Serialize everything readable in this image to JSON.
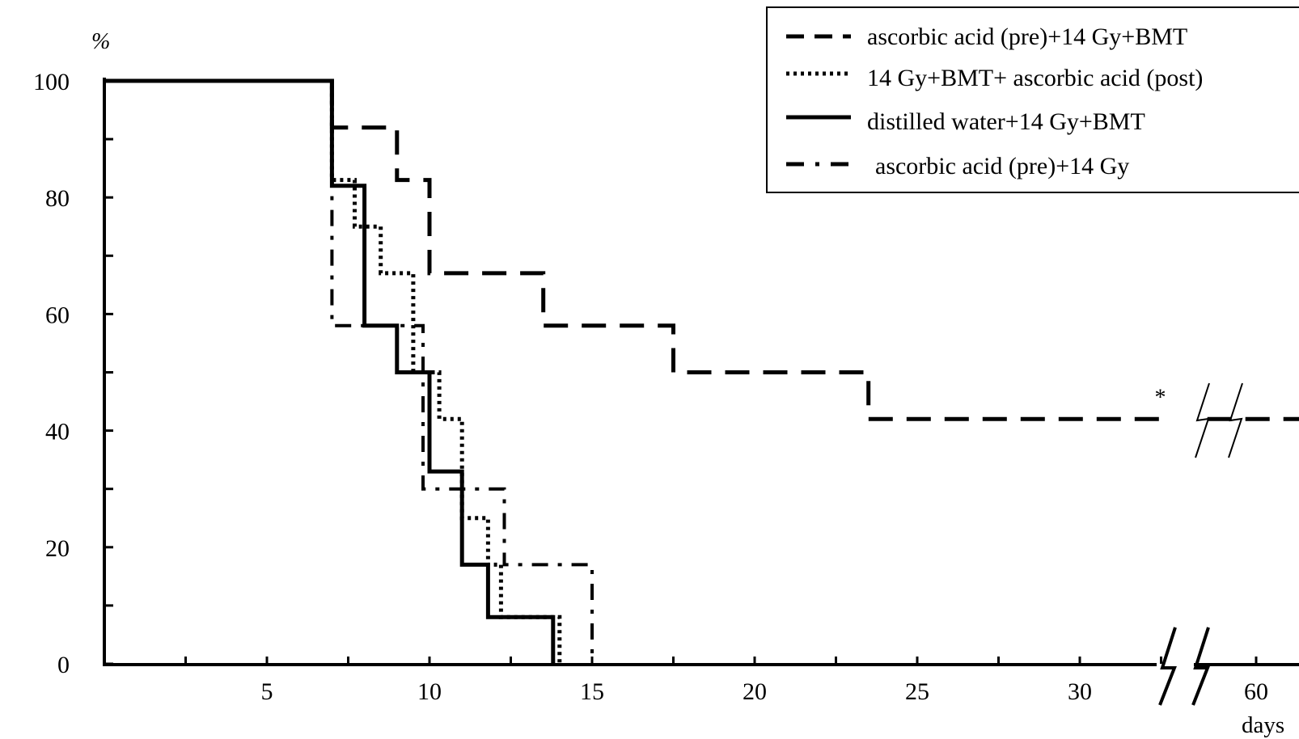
{
  "chart_data": {
    "type": "line",
    "title": "",
    "ylabel": "%",
    "xlabel": "days",
    "ylim": [
      0,
      100
    ],
    "y_ticks": [
      0,
      20,
      40,
      60,
      80,
      100
    ],
    "x_ticks": [
      {
        "value": 5,
        "label": "5"
      },
      {
        "value": 10,
        "label": "10"
      },
      {
        "value": 15,
        "label": "15"
      },
      {
        "value": 20,
        "label": "20"
      },
      {
        "value": 25,
        "label": "25"
      },
      {
        "value": 30,
        "label": "30"
      },
      {
        "value": 60,
        "label": "60"
      }
    ],
    "axis_break": "between 30 and 60 days",
    "legend_position": "top-right",
    "grid": false,
    "series": [
      {
        "name": "ascorbic acid (pre)+14 Gy+BMT",
        "style": "dashed",
        "points": [
          [
            0,
            100
          ],
          [
            7,
            100
          ],
          [
            7,
            92
          ],
          [
            9,
            92
          ],
          [
            9,
            83
          ],
          [
            10,
            83
          ],
          [
            10,
            67
          ],
          [
            13.5,
            67
          ],
          [
            13.5,
            58
          ],
          [
            17.5,
            58
          ],
          [
            17.5,
            50
          ],
          [
            23.5,
            50
          ],
          [
            23.5,
            42
          ],
          [
            60,
            42
          ],
          [
            61.5,
            42
          ]
        ]
      },
      {
        "name": "14 Gy+BMT+ ascorbic acid (post)",
        "style": "dotted",
        "points": [
          [
            0,
            100
          ],
          [
            7,
            100
          ],
          [
            7,
            83
          ],
          [
            7.7,
            83
          ],
          [
            7.7,
            75
          ],
          [
            8.5,
            75
          ],
          [
            8.5,
            67
          ],
          [
            9.5,
            67
          ],
          [
            9.5,
            50
          ],
          [
            10.3,
            50
          ],
          [
            10.3,
            42
          ],
          [
            11,
            42
          ],
          [
            11,
            25
          ],
          [
            11.8,
            25
          ],
          [
            11.8,
            17
          ],
          [
            12.2,
            17
          ],
          [
            12.2,
            8
          ],
          [
            14,
            8
          ],
          [
            14,
            0
          ]
        ]
      },
      {
        "name": "distilled water+14 Gy+BMT",
        "style": "solid",
        "points": [
          [
            0,
            100
          ],
          [
            7,
            100
          ],
          [
            7,
            82
          ],
          [
            8,
            82
          ],
          [
            8,
            58
          ],
          [
            9,
            58
          ],
          [
            9,
            50
          ],
          [
            10,
            50
          ],
          [
            10,
            33
          ],
          [
            11,
            33
          ],
          [
            11,
            17
          ],
          [
            11.8,
            17
          ],
          [
            11.8,
            8
          ],
          [
            13.8,
            8
          ],
          [
            13.8,
            0
          ]
        ]
      },
      {
        "name": "ascorbic acid (pre)+14 Gy",
        "style": "dash-dot",
        "points": [
          [
            0,
            100
          ],
          [
            7,
            100
          ],
          [
            7,
            58
          ],
          [
            9.8,
            58
          ],
          [
            9.8,
            30
          ],
          [
            12.3,
            30
          ],
          [
            12.3,
            17
          ],
          [
            15,
            17
          ],
          [
            15,
            0
          ]
        ]
      }
    ],
    "annotations": [
      {
        "text": "*",
        "x": 32.3,
        "y": 45
      }
    ]
  }
}
